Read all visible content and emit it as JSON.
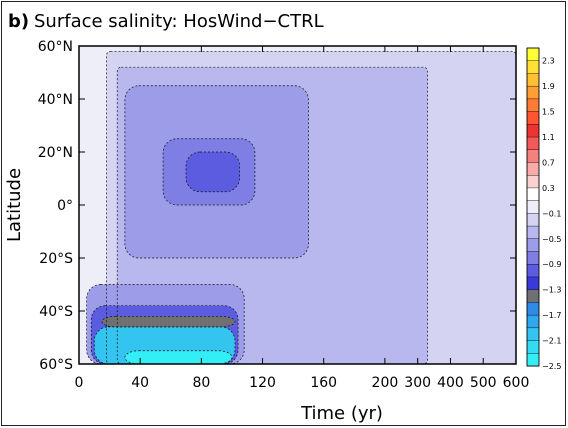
{
  "panel_label": "b)",
  "chart_data": {
    "type": "heatmap",
    "title": "Surface salinity: HosWind−CTRL",
    "xlabel": "Time (yr)",
    "ylabel": "Latitude",
    "x_ticks": [
      "0",
      "40",
      "80",
      "120",
      "160",
      "200",
      "300",
      "400",
      "500",
      "600"
    ],
    "x_tick_values": [
      0,
      40,
      80,
      120,
      160,
      200,
      300,
      400,
      500,
      600
    ],
    "x_axis_note": "piecewise-linear axis: 0-200 yr linear, 200-600 yr compressed",
    "y_ticks": [
      "60°S",
      "40°S",
      "20°S",
      "0°",
      "20°N",
      "40°N",
      "60°N"
    ],
    "y_tick_values": [
      -60,
      -40,
      -20,
      0,
      20,
      40,
      60
    ],
    "xlim": [
      0,
      600
    ],
    "ylim": [
      -60,
      60
    ],
    "colorbar": {
      "labels": [
        "2.3",
        "1.9",
        "1.5",
        "1.1",
        "0.7",
        "0.3",
        "−0.1",
        "−0.5",
        "−0.9",
        "−1.3",
        "−1.7",
        "−2.1",
        "−2.5"
      ],
      "label_values": [
        2.3,
        1.9,
        1.5,
        1.1,
        0.7,
        0.3,
        -0.1,
        -0.5,
        -0.9,
        -1.3,
        -1.7,
        -2.1,
        -2.5
      ],
      "levels": [
        2.5,
        2.3,
        2.1,
        1.9,
        1.7,
        1.5,
        1.3,
        1.1,
        0.9,
        0.7,
        0.5,
        0.3,
        0.1,
        -0.1,
        -0.3,
        -0.5,
        -0.7,
        -0.9,
        -1.1,
        -1.3,
        -1.5,
        -1.7,
        -1.9,
        -2.1,
        -2.3,
        -2.5
      ],
      "colors": [
        "#ffff33",
        "#ffe033",
        "#ffc033",
        "#ff9f33",
        "#ff7a33",
        "#ff5533",
        "#ee3333",
        "#f25a5a",
        "#f58080",
        "#f9aaaa",
        "#fbd0d0",
        "#ffffff",
        "#eeeef8",
        "#d4d4f2",
        "#b8b8ee",
        "#9c9ce8",
        "#7e7ee4",
        "#5c5ce0",
        "#3a3ad8",
        "#707070",
        "#2f8ae8",
        "#2ea8ee",
        "#33c4f0",
        "#33dcf2",
        "#33eef5"
      ]
    },
    "regions": [
      {
        "name": "outside-zero",
        "x_range": [
          0,
          600
        ],
        "lat_range": [
          -60,
          60
        ],
        "value": 0.0
      },
      {
        "name": "weak-freshening",
        "x_range": [
          18,
          600
        ],
        "lat_range": [
          -60,
          58
        ],
        "value": -0.2
      },
      {
        "name": "moderate-freshening",
        "x_range": [
          25,
          330
        ],
        "lat_range": [
          -60,
          52
        ],
        "value": -0.4
      },
      {
        "name": "tropical-core-outer",
        "x_range": [
          30,
          150
        ],
        "lat_range": [
          -20,
          45
        ],
        "value": -0.6
      },
      {
        "name": "tropical-core",
        "x_range": [
          55,
          115
        ],
        "lat_range": [
          0,
          25
        ],
        "value": -0.8
      },
      {
        "name": "tropical-peak",
        "x_range": [
          70,
          105
        ],
        "lat_range": [
          5,
          20
        ],
        "value": -1.0
      },
      {
        "name": "southern-freshening-outer",
        "x_range": [
          5,
          108
        ],
        "lat_range": [
          -60,
          -30
        ],
        "value": -0.6
      },
      {
        "name": "southern-freshening",
        "x_range": [
          8,
          104
        ],
        "lat_range": [
          -60,
          -38
        ],
        "value": -0.9
      },
      {
        "name": "southern-max-line",
        "x_range": [
          15,
          102
        ],
        "lat_range": [
          -46,
          -42
        ],
        "value": -1.3
      },
      {
        "name": "southern-peak",
        "x_range": [
          10,
          102
        ],
        "lat_range": [
          -60,
          -46
        ],
        "value": -2.0
      },
      {
        "name": "southern-extreme",
        "x_range": [
          30,
          100
        ],
        "lat_range": [
          -60,
          -55
        ],
        "value": -2.4
      }
    ]
  }
}
